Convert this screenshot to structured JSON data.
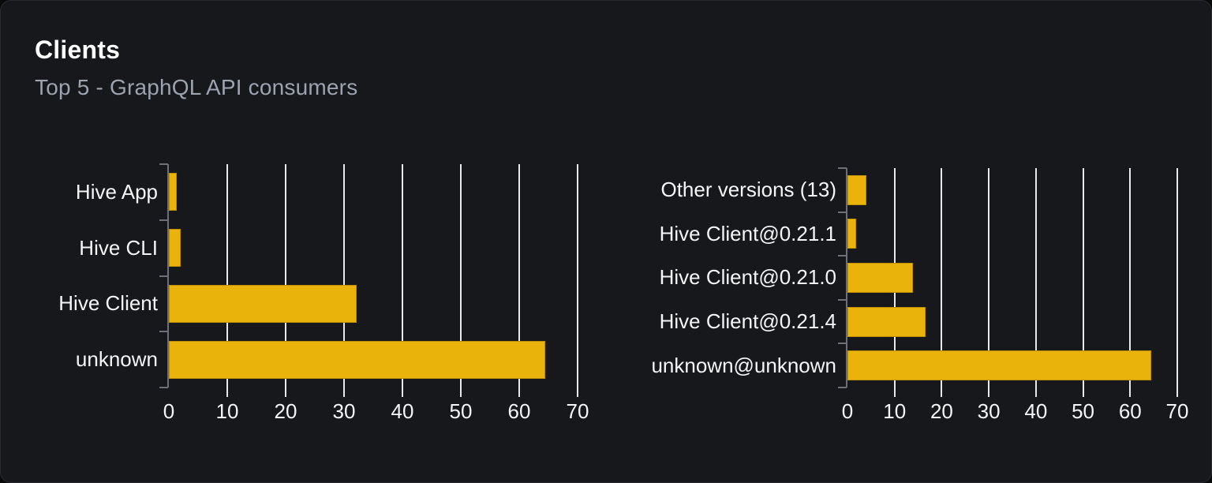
{
  "card": {
    "title": "Clients",
    "subtitle": "Top 5 - GraphQL API consumers"
  },
  "colors": {
    "page_bg": "#0a0a0b",
    "card_bg": "#17181c",
    "card_border": "#292a30",
    "bar": "#eab30c",
    "grid_line": "#e6e8ec",
    "axis_line": "#6e7079",
    "label_text": "#f5f5f6",
    "subtitle_text": "#9ca3af"
  },
  "chart_data": [
    {
      "type": "bar",
      "orientation": "horizontal",
      "title": "Clients (by client name)",
      "categories": [
        "Hive App",
        "Hive CLI",
        "Hive Client",
        "unknown"
      ],
      "values": [
        1.4,
        2.0,
        32.2,
        64.4
      ],
      "xlim": [
        0,
        70
      ],
      "x_ticks": [
        "0",
        "10",
        "20",
        "30",
        "40",
        "50",
        "60",
        "70"
      ],
      "grid": true,
      "legend": "none"
    },
    {
      "type": "bar",
      "orientation": "horizontal",
      "title": "Clients (by client version)",
      "categories": [
        "Other versions (13)",
        "Hive Client@0.21.1",
        "Hive Client@0.21.0",
        "Hive Client@0.21.4",
        "unknown@unknown"
      ],
      "values": [
        4.0,
        1.9,
        13.9,
        16.5,
        64.4
      ],
      "xlim": [
        0,
        70
      ],
      "x_ticks": [
        "0",
        "10",
        "20",
        "30",
        "40",
        "50",
        "60",
        "70"
      ],
      "grid": true,
      "legend": "none"
    }
  ]
}
